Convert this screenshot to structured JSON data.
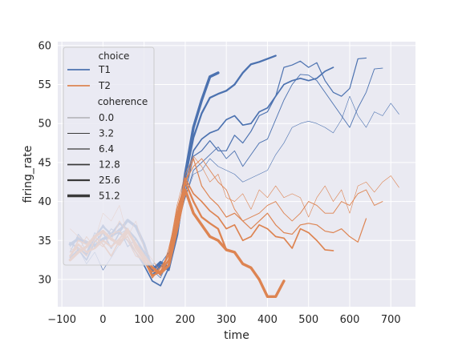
{
  "chart_data": {
    "type": "line",
    "xlabel": "time",
    "ylabel": "firing_rate",
    "xlim": [
      -110,
      760
    ],
    "ylim": [
      26.5,
      60.5
    ],
    "xticks": [
      -100,
      0,
      100,
      200,
      300,
      400,
      500,
      600,
      700
    ],
    "yticks": [
      30,
      35,
      40,
      45,
      50,
      55,
      60
    ],
    "grid": true,
    "legend": {
      "placement": "top-left",
      "hue_title": "choice",
      "hue_entries": [
        {
          "label": "T1",
          "color": "#4c72b0"
        },
        {
          "label": "T2",
          "color": "#dd8452"
        }
      ],
      "size_title": "coherence",
      "size_entries": [
        {
          "label": "0.0",
          "width": 0.6
        },
        {
          "label": "3.2",
          "width": 0.9
        },
        {
          "label": "6.4",
          "width": 1.2
        },
        {
          "label": "12.8",
          "width": 1.7
        },
        {
          "label": "25.6",
          "width": 2.3
        },
        {
          "label": "51.2",
          "width": 3.4
        }
      ]
    },
    "series": [
      {
        "choice": "T1",
        "coherence": "51.2",
        "color": "#4c72b0",
        "width": 3.4,
        "x": [
          -80,
          -60,
          -40,
          -20,
          0,
          20,
          40,
          60,
          80,
          100,
          120,
          140,
          160,
          180,
          200,
          220,
          240,
          260,
          280
        ],
        "y": [
          34.5,
          35.2,
          34.8,
          34.3,
          35.2,
          35.6,
          36.2,
          37.6,
          36.8,
          34.5,
          31.2,
          32.2,
          31.5,
          35.8,
          43.5,
          49.5,
          53.0,
          56.0,
          56.5
        ]
      },
      {
        "choice": "T1",
        "coherence": "25.6",
        "color": "#4c72b0",
        "width": 2.3,
        "x": [
          -80,
          -60,
          -40,
          -20,
          0,
          20,
          40,
          60,
          80,
          100,
          120,
          140,
          160,
          180,
          200,
          220,
          240,
          260,
          280,
          300,
          320,
          340,
          360,
          380,
          400,
          420
        ],
        "y": [
          34.7,
          34.0,
          33.2,
          35.5,
          36.8,
          35.8,
          37.2,
          36.4,
          35.2,
          33.5,
          30.5,
          31.8,
          31.2,
          36.2,
          43.0,
          48.2,
          51.3,
          53.3,
          53.8,
          54.2,
          55.0,
          56.5,
          57.6,
          57.9,
          58.3,
          58.7
        ]
      },
      {
        "choice": "T1",
        "coherence": "12.8",
        "color": "#4c72b0",
        "width": 1.7,
        "x": [
          -80,
          -60,
          -40,
          -20,
          0,
          20,
          40,
          60,
          80,
          100,
          120,
          140,
          160,
          180,
          200,
          220,
          240,
          260,
          280,
          300,
          320,
          340,
          360,
          380,
          400,
          420,
          440,
          460,
          480,
          500,
          520,
          540,
          560
        ],
        "y": [
          32.8,
          33.8,
          32.5,
          34.8,
          36.0,
          34.0,
          36.0,
          35.0,
          33.5,
          31.8,
          29.8,
          29.2,
          31.5,
          35.5,
          42.0,
          46.5,
          48.0,
          48.8,
          49.2,
          50.5,
          51.0,
          49.8,
          50.0,
          51.5,
          52.0,
          53.5,
          55.0,
          55.5,
          55.8,
          55.5,
          55.8,
          56.7,
          57.2
        ]
      },
      {
        "choice": "T1",
        "coherence": "6.4",
        "color": "#4c72b0",
        "width": 1.2,
        "x": [
          -80,
          -60,
          -40,
          -20,
          0,
          20,
          40,
          60,
          80,
          100,
          120,
          140,
          160,
          180,
          200,
          220,
          240,
          260,
          280,
          300,
          320,
          340,
          360,
          380,
          400,
          420,
          440,
          460,
          480,
          500,
          520,
          540,
          560,
          580,
          600,
          620,
          640
        ],
        "y": [
          33.5,
          35.8,
          34.5,
          35.2,
          37.0,
          35.5,
          36.5,
          34.2,
          35.2,
          33.0,
          32.0,
          30.5,
          32.5,
          36.5,
          41.0,
          45.8,
          46.5,
          47.8,
          46.5,
          46.5,
          48.5,
          47.5,
          49.0,
          51.0,
          51.5,
          53.5,
          57.2,
          57.5,
          58.0,
          57.2,
          57.8,
          55.5,
          54.0,
          53.5,
          54.5,
          58.3,
          58.4
        ]
      },
      {
        "choice": "T1",
        "coherence": "3.2",
        "color": "#4c72b0",
        "width": 0.9,
        "x": [
          -80,
          -60,
          -40,
          -20,
          0,
          20,
          40,
          60,
          80,
          100,
          120,
          140,
          160,
          180,
          200,
          220,
          240,
          260,
          280,
          300,
          320,
          340,
          360,
          380,
          400,
          420,
          440,
          460,
          480,
          500,
          520,
          540,
          560,
          580,
          600,
          620,
          640,
          660,
          680
        ],
        "y": [
          34.2,
          35.5,
          33.5,
          36.0,
          34.8,
          36.5,
          35.8,
          36.5,
          34.0,
          33.0,
          31.0,
          32.0,
          33.5,
          37.0,
          40.5,
          44.0,
          45.0,
          46.0,
          47.0,
          45.5,
          46.5,
          44.5,
          46.0,
          47.5,
          48.0,
          50.5,
          53.0,
          55.0,
          56.3,
          56.2,
          55.5,
          54.0,
          52.5,
          51.0,
          49.5,
          52.0,
          54.0,
          57.0,
          57.1
        ]
      },
      {
        "choice": "T1",
        "coherence": "0.0",
        "color": "#4c72b0",
        "width": 0.6,
        "x": [
          -80,
          -60,
          -40,
          -20,
          0,
          20,
          40,
          60,
          80,
          100,
          120,
          140,
          160,
          180,
          200,
          220,
          240,
          260,
          280,
          300,
          320,
          340,
          360,
          380,
          400,
          420,
          440,
          460,
          480,
          500,
          520,
          540,
          560,
          580,
          600,
          620,
          640,
          660,
          680,
          700,
          720
        ],
        "y": [
          32.5,
          34.0,
          32.0,
          33.5,
          31.2,
          32.8,
          34.5,
          35.5,
          33.5,
          32.0,
          31.2,
          30.2,
          32.5,
          36.5,
          40.5,
          43.5,
          44.0,
          45.5,
          44.5,
          44.0,
          43.5,
          42.5,
          43.0,
          43.5,
          44.0,
          46.0,
          47.5,
          49.5,
          50.0,
          50.3,
          50.0,
          49.5,
          48.8,
          50.5,
          53.5,
          51.0,
          49.5,
          51.5,
          51.0,
          52.6,
          51.2
        ]
      },
      {
        "choice": "T2",
        "coherence": "51.2",
        "color": "#dd8452",
        "width": 3.4,
        "x": [
          -80,
          -60,
          -40,
          -20,
          0,
          20,
          40,
          60,
          80,
          100,
          120,
          140,
          160,
          180,
          200,
          220,
          240,
          260,
          280,
          300,
          320,
          340,
          360,
          380,
          400,
          420,
          440
        ],
        "y": [
          32.5,
          33.5,
          34.2,
          35.5,
          36.2,
          35.2,
          34.5,
          36.2,
          34.5,
          33.0,
          31.5,
          30.8,
          31.8,
          36.5,
          41.5,
          38.5,
          37.0,
          35.5,
          35.0,
          33.8,
          33.5,
          32.0,
          31.5,
          30.0,
          27.8,
          27.8,
          29.8
        ]
      },
      {
        "choice": "T2",
        "coherence": "25.6",
        "color": "#dd8452",
        "width": 2.3,
        "x": [
          -80,
          -60,
          -40,
          -20,
          0,
          20,
          40,
          60,
          80,
          100,
          120,
          140,
          160,
          180,
          200,
          220,
          240,
          260,
          280,
          300
        ],
        "y": [
          33.0,
          34.5,
          33.5,
          34.0,
          35.0,
          34.2,
          35.2,
          36.5,
          34.0,
          32.5,
          30.5,
          31.0,
          32.5,
          37.5,
          42.5,
          40.0,
          38.0,
          37.2,
          36.5,
          33.8
        ]
      },
      {
        "choice": "T2",
        "coherence": "12.8",
        "color": "#dd8452",
        "width": 1.7,
        "x": [
          -80,
          -60,
          -40,
          -20,
          0,
          20,
          40,
          60,
          80,
          100,
          120,
          140,
          160,
          180,
          200,
          220,
          240,
          260,
          280,
          300,
          320,
          340,
          360,
          380,
          400,
          420,
          440,
          460,
          480,
          500,
          520,
          540,
          560
        ],
        "y": [
          33.0,
          35.0,
          34.5,
          35.5,
          34.5,
          33.0,
          35.0,
          35.5,
          33.5,
          32.2,
          31.0,
          31.0,
          33.2,
          38.0,
          43.0,
          41.0,
          40.0,
          38.8,
          38.0,
          36.5,
          37.0,
          35.0,
          35.5,
          37.0,
          36.5,
          35.5,
          35.3,
          34.0,
          36.5,
          36.0,
          35.0,
          33.8,
          33.7
        ]
      },
      {
        "choice": "T2",
        "coherence": "6.4",
        "color": "#dd8452",
        "width": 1.2,
        "x": [
          -80,
          -60,
          -40,
          -20,
          0,
          20,
          40,
          60,
          80,
          100,
          120,
          140,
          160,
          180,
          200,
          220,
          240,
          260,
          280,
          300,
          320,
          340,
          360,
          380,
          400,
          420,
          440,
          460,
          480,
          500,
          520,
          540,
          560,
          580,
          600,
          620,
          640
        ],
        "y": [
          33.5,
          34.0,
          33.0,
          35.0,
          34.2,
          35.8,
          36.2,
          35.0,
          33.0,
          32.5,
          30.2,
          31.5,
          33.2,
          39.0,
          42.5,
          45.5,
          42.0,
          40.5,
          39.5,
          38.0,
          38.5,
          37.5,
          36.5,
          37.5,
          38.5,
          37.0,
          36.0,
          35.8,
          37.0,
          37.2,
          37.0,
          36.2,
          36.0,
          36.5,
          35.5,
          34.8,
          37.8
        ]
      },
      {
        "choice": "T2",
        "coherence": "3.2",
        "color": "#dd8452",
        "width": 0.9,
        "x": [
          -80,
          -60,
          -40,
          -20,
          0,
          20,
          40,
          60,
          80,
          100,
          120,
          140,
          160,
          180,
          200,
          220,
          240,
          260,
          280,
          300,
          320,
          340,
          360,
          380,
          400,
          420,
          440,
          460,
          480,
          500,
          520,
          540,
          560,
          580,
          600,
          620,
          640,
          660,
          680
        ],
        "y": [
          34.0,
          33.5,
          35.5,
          34.0,
          36.0,
          35.0,
          37.5,
          36.0,
          34.5,
          33.0,
          31.5,
          30.5,
          34.0,
          38.5,
          42.5,
          44.5,
          45.5,
          44.0,
          42.5,
          41.5,
          39.0,
          37.5,
          38.0,
          38.5,
          39.5,
          40.0,
          38.5,
          37.5,
          38.5,
          40.0,
          39.5,
          38.5,
          38.5,
          40.0,
          39.5,
          41.0,
          41.5,
          39.5,
          40.0
        ]
      },
      {
        "choice": "T2",
        "coherence": "0.0",
        "color": "#dd8452",
        "width": 0.6,
        "x": [
          -80,
          -60,
          -40,
          -20,
          0,
          20,
          40,
          60,
          80,
          100,
          120,
          140,
          160,
          180,
          200,
          220,
          240,
          260,
          280,
          300,
          320,
          340,
          360,
          380,
          400,
          420,
          440,
          460,
          480,
          500,
          520,
          540,
          560,
          580,
          600,
          620,
          640,
          660,
          680,
          700,
          720
        ],
        "y": [
          36.5,
          35.5,
          34.8,
          35.0,
          38.5,
          37.5,
          39.5,
          35.5,
          37.5,
          34.0,
          32.5,
          31.0,
          33.5,
          39.5,
          43.5,
          45.8,
          44.5,
          42.5,
          43.5,
          40.5,
          40.0,
          41.0,
          39.0,
          41.5,
          40.5,
          42.0,
          40.5,
          41.0,
          40.5,
          38.0,
          40.5,
          42.0,
          40.0,
          41.5,
          38.5,
          42.0,
          42.5,
          41.2,
          42.5,
          43.3,
          41.8
        ]
      }
    ]
  }
}
